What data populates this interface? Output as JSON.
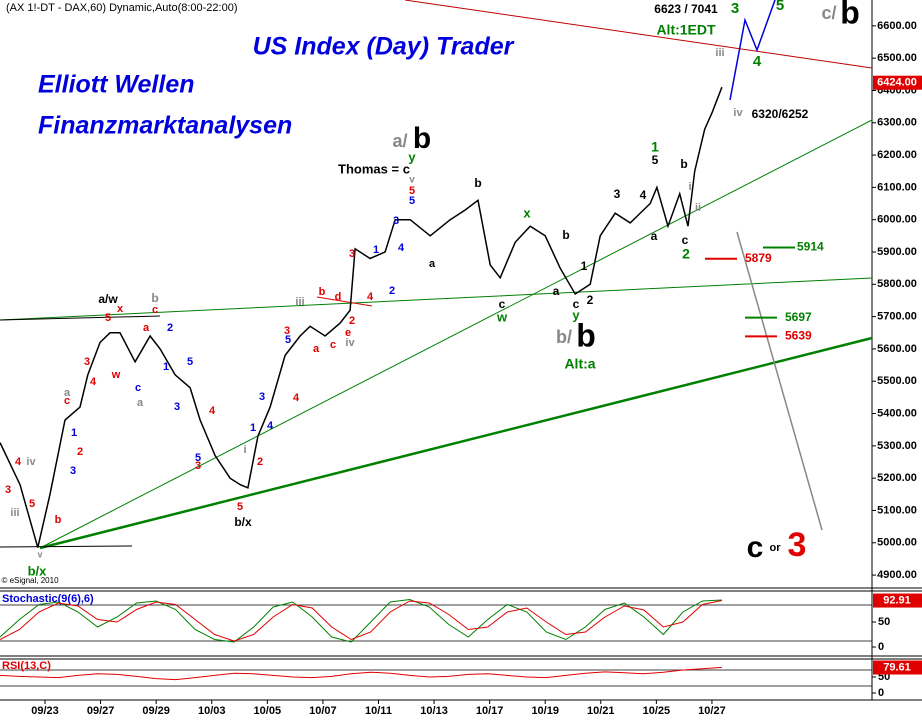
{
  "header": "(AX 1!-DT - DAX,60) Dynamic,Auto(8:00-22:00)",
  "chart_data": {
    "type": "line",
    "title": "US Index (Day) Trader",
    "subtitle": [
      "Elliott Wellen",
      "Finanzmarktanalysen"
    ],
    "x": [
      -0.81,
      -0.45,
      -0.13,
      0.09,
      0.36,
      0.63,
      0.77,
      0.99,
      1.17,
      1.35,
      1.62,
      1.89,
      2.07,
      2.34,
      2.61,
      2.79,
      3.06,
      3.33,
      3.51,
      3.65,
      3.83,
      4.05,
      4.32,
      4.59,
      4.77,
      5.04,
      5.31,
      5.49,
      5.58,
      5.85,
      6.12,
      6.3,
      6.57,
      6.93,
      7.29,
      7.56,
      7.79,
      8.01,
      8.19,
      8.46,
      8.73,
      9.0,
      9.27,
      9.54,
      9.81,
      9.99,
      10.26,
      10.53,
      10.89,
      11.01,
      11.21,
      11.42,
      11.57,
      11.69,
      11.87,
      12.0,
      12.18
    ],
    "series": [
      {
        "color": "#000000",
        "values": [
          5310,
          5180,
          4985,
          5150,
          5380,
          5420,
          5520,
          5620,
          5650,
          5650,
          5560,
          5640,
          5600,
          5520,
          5480,
          5380,
          5270,
          5200,
          5180,
          5170,
          5330,
          5420,
          5580,
          5640,
          5670,
          5640,
          5680,
          5720,
          5910,
          5880,
          5900,
          6000,
          6000,
          5950,
          6000,
          6030,
          6060,
          5860,
          5820,
          5930,
          5980,
          5950,
          5850,
          5770,
          5800,
          5950,
          6020,
          5990,
          6050,
          6100,
          5980,
          6080,
          5980,
          6150,
          6280,
          6330,
          6410
        ]
      }
    ],
    "xlim": [
      -0.81,
      14.88
    ],
    "ylim": [
      4860,
      6680
    ],
    "xticks": [
      {
        "value": 0,
        "label": "09/23"
      },
      {
        "value": 1,
        "label": "09/27"
      },
      {
        "value": 2,
        "label": "09/29"
      },
      {
        "value": 3,
        "label": "10/03"
      },
      {
        "value": 4,
        "label": "10/05"
      },
      {
        "value": 5,
        "label": "10/07"
      },
      {
        "value": 6,
        "label": "10/11"
      },
      {
        "value": 7,
        "label": "10/13"
      },
      {
        "value": 8,
        "label": "10/17"
      },
      {
        "value": 9,
        "label": "10/19"
      },
      {
        "value": 10,
        "label": "10/21"
      },
      {
        "value": 11,
        "label": "10/25"
      },
      {
        "value": 12,
        "label": "10/27"
      }
    ],
    "yticks": [
      {
        "value": 4900,
        "label": "4900.00"
      },
      {
        "value": 5000,
        "label": "5000.00"
      },
      {
        "value": 5100,
        "label": "5100.00"
      },
      {
        "value": 5200,
        "label": "5200.00"
      },
      {
        "value": 5300,
        "label": "5300.00"
      },
      {
        "value": 5400,
        "label": "5400.00"
      },
      {
        "value": 5500,
        "label": "5500.00"
      },
      {
        "value": 5600,
        "label": "5600.00"
      },
      {
        "value": 5700,
        "label": "5700.00"
      },
      {
        "value": 5800,
        "label": "5800.00"
      },
      {
        "value": 5900,
        "label": "5900.00"
      },
      {
        "value": 6000,
        "label": "6000.00"
      },
      {
        "value": 6100,
        "label": "6100.00"
      },
      {
        "value": 6200,
        "label": "6200.00"
      },
      {
        "value": 6300,
        "label": "6300.00"
      },
      {
        "value": 6400,
        "label": "6400.00"
      },
      {
        "value": 6500,
        "label": "6500.00"
      },
      {
        "value": 6600,
        "label": "6600.00"
      }
    ],
    "last": {
      "values": [
        6424
      ],
      "value_labels": [
        "6424.00"
      ],
      "color": "#e00000"
    },
    "levels": [
      {
        "value": 5914,
        "color": "#008000"
      },
      {
        "value": 5879,
        "color": "#e00000"
      },
      {
        "value": 5697,
        "color": "#008000"
      },
      {
        "value": 5639,
        "color": "#e00000"
      }
    ],
    "annotations": [
      {
        "text": "a/w",
        "color": "#000000"
      },
      {
        "text": "b",
        "color": "#888888"
      },
      {
        "text": "x",
        "color": "#e00000"
      },
      {
        "text": "5",
        "color": "#e00000"
      },
      {
        "text": "c",
        "color": "#e00000"
      },
      {
        "text": "a",
        "color": "#e00000"
      },
      {
        "text": "2",
        "color": "#0000dd"
      },
      {
        "text": "3",
        "color": "#e00000"
      },
      {
        "text": "4",
        "color": "#e00000"
      },
      {
        "text": "w",
        "color": "#e00000"
      },
      {
        "text": "c",
        "color": "#0000dd"
      },
      {
        "text": "a",
        "color": "#888888"
      },
      {
        "text": "1",
        "color": "#0000dd"
      },
      {
        "text": "5",
        "color": "#0000dd"
      },
      {
        "text": "3",
        "color": "#0000dd"
      },
      {
        "text": "4",
        "color": "#e00000"
      },
      {
        "text": "5",
        "color": "#0000dd"
      },
      {
        "text": "3",
        "color": "#e00000"
      },
      {
        "text": "a",
        "color": "#888888"
      },
      {
        "text": "c",
        "color": "#e00000"
      },
      {
        "text": "1",
        "color": "#0000dd"
      },
      {
        "text": "2",
        "color": "#e00000"
      },
      {
        "text": "3",
        "color": "#0000dd"
      },
      {
        "text": "4",
        "color": "#e00000"
      },
      {
        "text": "iv",
        "color": "#888888"
      },
      {
        "text": "3",
        "color": "#e00000"
      },
      {
        "text": "5",
        "color": "#e00000"
      },
      {
        "text": "iii",
        "color": "#888888"
      },
      {
        "text": "b",
        "color": "#e00000"
      },
      {
        "text": "v",
        "color": "#888888"
      },
      {
        "text": "b/x",
        "color": "#008000"
      },
      {
        "text": "i",
        "color": "#888888"
      },
      {
        "text": "2",
        "color": "#e00000"
      },
      {
        "text": "3",
        "color": "#0000dd"
      },
      {
        "text": "4",
        "color": "#0000dd"
      },
      {
        "text": "1",
        "color": "#0000dd"
      },
      {
        "text": "5",
        "color": "#e00000"
      },
      {
        "text": "b/x",
        "color": "#000000"
      },
      {
        "text": "3",
        "color": "#e00000"
      },
      {
        "text": "4",
        "color": "#e00000"
      },
      {
        "text": "5",
        "color": "#0000dd"
      },
      {
        "text": "iii",
        "color": "#888888"
      },
      {
        "text": "b",
        "color": "#e00000"
      },
      {
        "text": "d",
        "color": "#e00000"
      },
      {
        "text": "a",
        "color": "#e00000"
      },
      {
        "text": "c",
        "color": "#e00000"
      },
      {
        "text": "e",
        "color": "#e00000"
      },
      {
        "text": "2",
        "color": "#e00000"
      },
      {
        "text": "iv",
        "color": "#888888"
      },
      {
        "text": "4",
        "color": "#e00000"
      },
      {
        "text": "3",
        "color": "#e00000"
      },
      {
        "text": "1",
        "color": "#0000dd"
      },
      {
        "text": "2",
        "color": "#0000dd"
      },
      {
        "text": "3",
        "color": "#0000dd"
      },
      {
        "text": "4",
        "color": "#0000dd"
      },
      {
        "text": "5",
        "color": "#0000dd"
      },
      {
        "text": "5",
        "color": "#e00000"
      },
      {
        "text": "v",
        "color": "#888888"
      },
      {
        "text": "y",
        "color": "#008000"
      },
      {
        "text": "a",
        "color": "#000000"
      },
      {
        "text": "b",
        "color": "#000000"
      },
      {
        "text": "c",
        "color": "#000000"
      },
      {
        "text": "w",
        "color": "#008000"
      },
      {
        "text": "x",
        "color": "#008000"
      },
      {
        "text": "b",
        "color": "#000000"
      },
      {
        "text": "a",
        "color": "#000000"
      },
      {
        "text": "c",
        "color": "#000000"
      },
      {
        "text": "y",
        "color": "#008000"
      },
      {
        "text": "1",
        "color": "#000000"
      },
      {
        "text": "2",
        "color": "#000000"
      },
      {
        "text": "3",
        "color": "#000000"
      },
      {
        "text": "4",
        "color": "#000000"
      },
      {
        "text": "5",
        "color": "#000000"
      },
      {
        "text": "1",
        "color": "#008000"
      },
      {
        "text": "a",
        "color": "#000000"
      },
      {
        "text": "b",
        "color": "#000000"
      },
      {
        "text": "c",
        "color": "#000000"
      },
      {
        "text": "2",
        "color": "#008000"
      },
      {
        "text": "i",
        "color": "#888888"
      },
      {
        "text": "ii",
        "color": "#888888"
      },
      {
        "text": "iii",
        "color": "#888888"
      },
      {
        "text": "iv",
        "color": "#888888"
      },
      {
        "text": "3",
        "color": "#008000"
      },
      {
        "text": "5",
        "color": "#008000"
      },
      {
        "text": "4",
        "color": "#008000"
      },
      {
        "text": "Thomas = c",
        "color": "#000000"
      },
      {
        "text": "Alt:1EDT",
        "color": "#008000"
      },
      {
        "text": "6623 / 7041",
        "color": "#000000"
      },
      {
        "text": "6320/6252",
        "color": "#000000"
      },
      {
        "text": "Alt:a",
        "color": "#008000"
      },
      {
        "text": "a/",
        "color": "#888888"
      },
      {
        "text": "b",
        "color": "#000000"
      },
      {
        "text": "b/",
        "color": "#888888"
      },
      {
        "text": "b",
        "color": "#000000"
      },
      {
        "text": "c/",
        "color": "#888888"
      },
      {
        "text": "b",
        "color": "#000000"
      },
      {
        "text": "c",
        "color": "#000000"
      },
      {
        "text": "or",
        "color": "#000000"
      },
      {
        "text": "3",
        "color": "#e00000"
      },
      {
        "text": "© eSignal, 2010",
        "color": "#000000"
      }
    ]
  },
  "stochastic": {
    "title": "Stochastic(9(6),6)",
    "ylim": [
      0,
      100
    ],
    "yticks": [
      50,
      0
    ],
    "series": [
      {
        "color": "#008000",
        "values": [
          20,
          55,
          85,
          90,
          70,
          40,
          60,
          88,
          92,
          75,
          35,
          15,
          10,
          40,
          80,
          90,
          60,
          20,
          10,
          50,
          90,
          95,
          80,
          45,
          20,
          55,
          85,
          70,
          30,
          15,
          40,
          75,
          88,
          60,
          25,
          70,
          92,
          94
        ]
      },
      {
        "color": "#e00000",
        "values": [
          15,
          35,
          70,
          88,
          82,
          55,
          50,
          75,
          90,
          85,
          55,
          25,
          12,
          25,
          60,
          85,
          78,
          40,
          15,
          30,
          70,
          92,
          88,
          65,
          35,
          40,
          70,
          78,
          50,
          25,
          30,
          60,
          82,
          74,
          40,
          50,
          85,
          93
        ]
      }
    ],
    "last": 92.91
  },
  "rsi": {
    "title": "RSI(13,C)",
    "ylim": [
      0,
      100
    ],
    "yticks": [
      50,
      0
    ],
    "series": [
      {
        "color": "#e00000",
        "values": [
          55,
          52,
          50,
          48,
          55,
          60,
          58,
          52,
          45,
          42,
          48,
          55,
          62,
          60,
          55,
          50,
          48,
          52,
          60,
          65,
          62,
          55,
          50,
          52,
          58,
          60,
          55,
          50,
          48,
          55,
          62,
          66,
          63,
          60,
          65,
          72,
          76,
          80
        ]
      }
    ],
    "last": 79.61
  }
}
